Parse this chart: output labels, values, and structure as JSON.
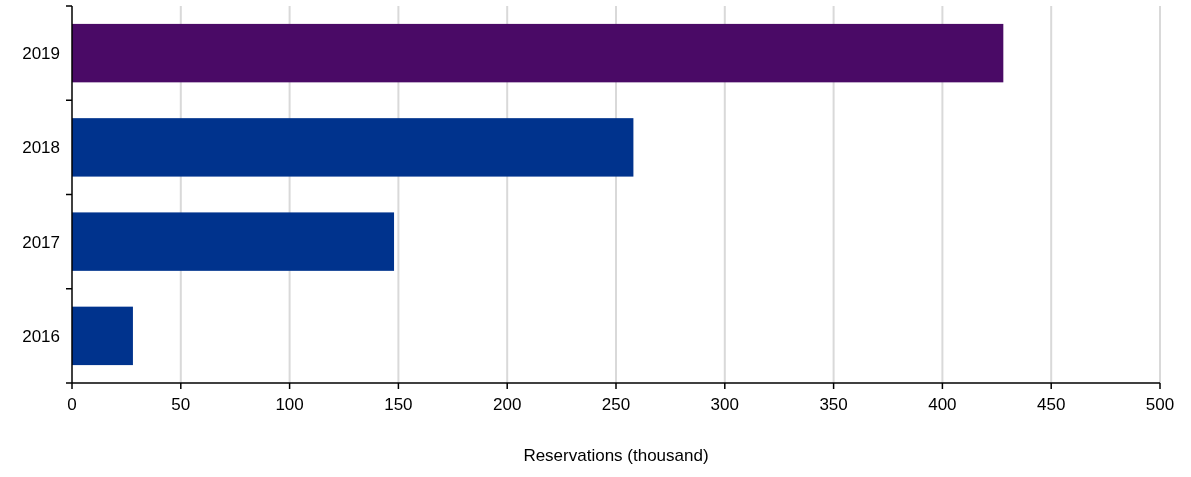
{
  "chart_data": {
    "type": "bar",
    "orientation": "horizontal",
    "categories": [
      "2019",
      "2018",
      "2017",
      "2016"
    ],
    "values": [
      428,
      258,
      148,
      28
    ],
    "colors": [
      "#4a0a66",
      "#00338d",
      "#00338d",
      "#00338d"
    ],
    "xlim": [
      0,
      500
    ],
    "xticks": [
      0,
      50,
      100,
      150,
      200,
      250,
      300,
      350,
      400,
      450,
      500
    ],
    "xlabel": "Reservations (thousand)",
    "grid": "x"
  }
}
